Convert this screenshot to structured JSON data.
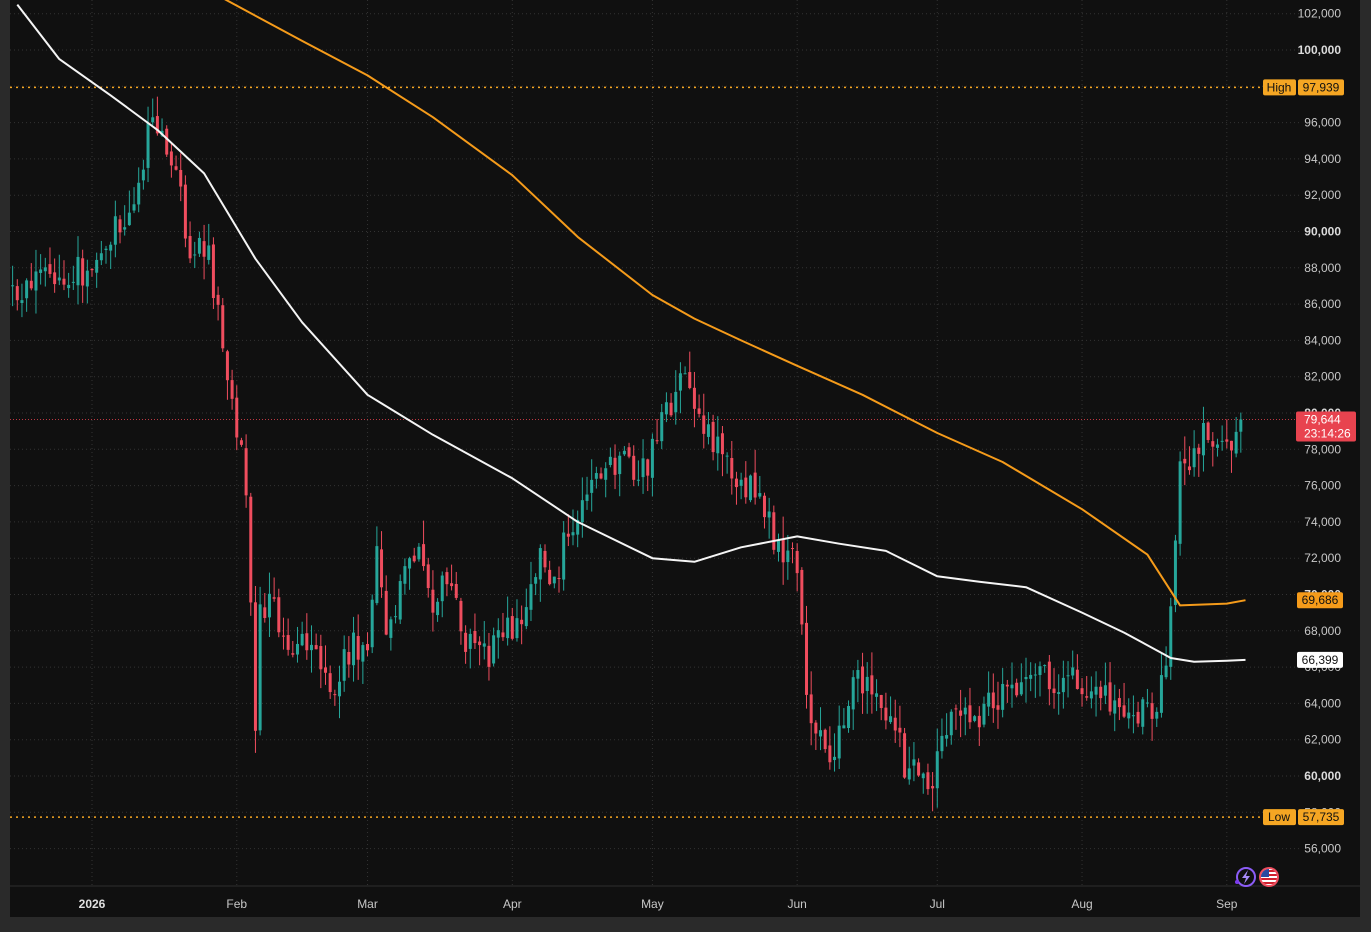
{
  "chart_data": {
    "type": "candlestick",
    "ylim": [
      54000,
      103000
    ],
    "y_ticks": [
      56000,
      58000,
      60000,
      62000,
      64000,
      66000,
      68000,
      70000,
      72000,
      74000,
      76000,
      78000,
      80000,
      82000,
      84000,
      86000,
      88000,
      90000,
      92000,
      94000,
      96000,
      98000,
      100000,
      102000
    ],
    "y_ticks_bold": [
      60000,
      70000,
      80000,
      90000,
      100000
    ],
    "x_labels": [
      {
        "label": "2026",
        "date": "2026-01-01",
        "bold": true
      },
      {
        "label": "Feb",
        "date": "2026-02-01"
      },
      {
        "label": "Mar",
        "date": "2026-03-01"
      },
      {
        "label": "Apr",
        "date": "2026-04-01"
      },
      {
        "label": "May",
        "date": "2026-05-01"
      },
      {
        "label": "Jun",
        "date": "2026-06-01"
      },
      {
        "label": "Jul",
        "date": "2026-07-01"
      },
      {
        "label": "Aug",
        "date": "2026-08-01"
      },
      {
        "label": "Sep",
        "date": "2026-09-01"
      }
    ],
    "price_anchors": [
      [
        "2025-12-12",
        87500
      ],
      [
        "2025-12-18",
        86800
      ],
      [
        "2025-12-25",
        88000
      ],
      [
        "2026-01-01",
        87600
      ],
      [
        "2026-01-06",
        90500
      ],
      [
        "2026-01-10",
        91500
      ],
      [
        "2026-01-14",
        96800
      ],
      [
        "2026-01-18",
        94500
      ],
      [
        "2026-01-22",
        89000
      ],
      [
        "2026-01-26",
        88700
      ],
      [
        "2026-01-29",
        84000
      ],
      [
        "2026-02-01",
        79500
      ],
      [
        "2026-02-03",
        76000
      ],
      [
        "2026-02-05",
        63000
      ],
      [
        "2026-02-06",
        69500
      ],
      [
        "2026-02-09",
        69000
      ],
      [
        "2026-02-13",
        67200
      ],
      [
        "2026-02-18",
        67000
      ],
      [
        "2026-02-22",
        65000
      ],
      [
        "2026-02-26",
        67500
      ],
      [
        "2026-03-01",
        66300
      ],
      [
        "2026-03-03",
        72200
      ],
      [
        "2026-03-05",
        67000
      ],
      [
        "2026-03-08",
        70000
      ],
      [
        "2026-03-12",
        73500
      ],
      [
        "2026-03-15",
        69500
      ],
      [
        "2026-03-18",
        70500
      ],
      [
        "2026-03-22",
        67500
      ],
      [
        "2026-03-26",
        66600
      ],
      [
        "2026-03-30",
        67600
      ],
      [
        "2026-04-03",
        68800
      ],
      [
        "2026-04-07",
        72000
      ],
      [
        "2026-04-10",
        70200
      ],
      [
        "2026-04-13",
        74000
      ],
      [
        "2026-04-16",
        74800
      ],
      [
        "2026-04-20",
        76500
      ],
      [
        "2026-04-24",
        77500
      ],
      [
        "2026-04-28",
        76300
      ],
      [
        "2026-05-01",
        77800
      ],
      [
        "2026-05-05",
        80700
      ],
      [
        "2026-05-08",
        81600
      ],
      [
        "2026-05-11",
        80000
      ],
      [
        "2026-05-14",
        78600
      ],
      [
        "2026-05-17",
        77000
      ],
      [
        "2026-05-20",
        76600
      ],
      [
        "2026-05-24",
        75000
      ],
      [
        "2026-05-28",
        72500
      ],
      [
        "2026-06-01",
        71800
      ],
      [
        "2026-06-03",
        65000
      ],
      [
        "2026-06-05",
        62000
      ],
      [
        "2026-06-08",
        61000
      ],
      [
        "2026-06-11",
        63500
      ],
      [
        "2026-06-14",
        65800
      ],
      [
        "2026-06-18",
        64000
      ],
      [
        "2026-06-21",
        63500
      ],
      [
        "2026-06-24",
        60500
      ],
      [
        "2026-06-27",
        59800
      ],
      [
        "2026-06-30",
        59700
      ],
      [
        "2026-07-02",
        62500
      ],
      [
        "2026-07-06",
        64000
      ],
      [
        "2026-07-10",
        63500
      ],
      [
        "2026-07-14",
        64500
      ],
      [
        "2026-07-18",
        65200
      ],
      [
        "2026-07-22",
        66400
      ],
      [
        "2026-07-26",
        64800
      ],
      [
        "2026-07-30",
        65700
      ],
      [
        "2026-08-03",
        64000
      ],
      [
        "2026-08-07",
        64200
      ],
      [
        "2026-08-11",
        63400
      ],
      [
        "2026-08-15",
        63500
      ],
      [
        "2026-08-18",
        64800
      ],
      [
        "2026-08-20",
        68500
      ],
      [
        "2026-08-22",
        77000
      ],
      [
        "2026-08-25",
        78000
      ],
      [
        "2026-08-28",
        79000
      ],
      [
        "2026-09-01",
        78000
      ],
      [
        "2026-09-03",
        79200
      ],
      [
        "2026-09-04",
        79644
      ]
    ],
    "series": [
      {
        "name": "",
        "color": "#f5f5f5",
        "last_value": 66399,
        "points": [
          [
            "2025-12-16",
            102500
          ],
          [
            "2025-12-25",
            99500
          ],
          [
            "2026-01-05",
            97500
          ],
          [
            "2026-01-15",
            95600
          ],
          [
            "2026-01-25",
            93200
          ],
          [
            "2026-02-05",
            88500
          ],
          [
            "2026-02-15",
            85000
          ],
          [
            "2026-03-01",
            81000
          ],
          [
            "2026-03-15",
            78800
          ],
          [
            "2026-04-01",
            76400
          ],
          [
            "2026-04-15",
            74000
          ],
          [
            "2026-05-01",
            72000
          ],
          [
            "2026-05-10",
            71800
          ],
          [
            "2026-05-20",
            72600
          ],
          [
            "2026-06-01",
            73200
          ],
          [
            "2026-06-10",
            72800
          ],
          [
            "2026-06-20",
            72400
          ],
          [
            "2026-07-01",
            71000
          ],
          [
            "2026-07-10",
            70700
          ],
          [
            "2026-07-20",
            70400
          ],
          [
            "2026-08-01",
            69000
          ],
          [
            "2026-08-10",
            67900
          ],
          [
            "2026-08-20",
            66500
          ],
          [
            "2026-08-25",
            66300
          ],
          [
            "2026-09-01",
            66350
          ],
          [
            "2026-09-05",
            66399
          ]
        ]
      },
      {
        "name": "",
        "color": "#f59b1a",
        "last_value": 69686,
        "points": [
          [
            "2026-01-28",
            103000
          ],
          [
            "2026-02-15",
            100500
          ],
          [
            "2026-03-01",
            98600
          ],
          [
            "2026-03-15",
            96300
          ],
          [
            "2026-04-01",
            93100
          ],
          [
            "2026-04-15",
            89700
          ],
          [
            "2026-05-01",
            86500
          ],
          [
            "2026-05-10",
            85200
          ],
          [
            "2026-05-20",
            84000
          ],
          [
            "2026-06-01",
            82600
          ],
          [
            "2026-06-15",
            81000
          ],
          [
            "2026-07-01",
            78900
          ],
          [
            "2026-07-15",
            77300
          ],
          [
            "2026-08-01",
            74700
          ],
          [
            "2026-08-15",
            72200
          ],
          [
            "2026-08-22",
            69400
          ],
          [
            "2026-09-01",
            69500
          ],
          [
            "2026-09-05",
            69686
          ]
        ]
      }
    ],
    "reference_lines": [
      {
        "name": "High",
        "value": 97939,
        "label": "High",
        "value_text": "97,939",
        "color": "#f5a623"
      },
      {
        "name": "Low",
        "value": 57735,
        "label": "Low",
        "value_text": "57,735",
        "color": "#f5a623"
      }
    ],
    "last_price": {
      "value": 79644,
      "value_text": "79,644",
      "countdown": "23:14:26",
      "color": "#e8434f"
    },
    "ma_tags": [
      {
        "value": 69686,
        "text": "69,686",
        "bg": "#f59b1a",
        "fg": "#111111"
      },
      {
        "value": 66399,
        "text": "66,399",
        "bg": "#ffffff",
        "fg": "#111111"
      }
    ],
    "colors": {
      "up": "#26a69a",
      "down": "#ef4d5e",
      "background": "#101010",
      "grid": "#333333"
    }
  },
  "icons": [
    "lightning-circle-icon",
    "us-flag-icon"
  ]
}
